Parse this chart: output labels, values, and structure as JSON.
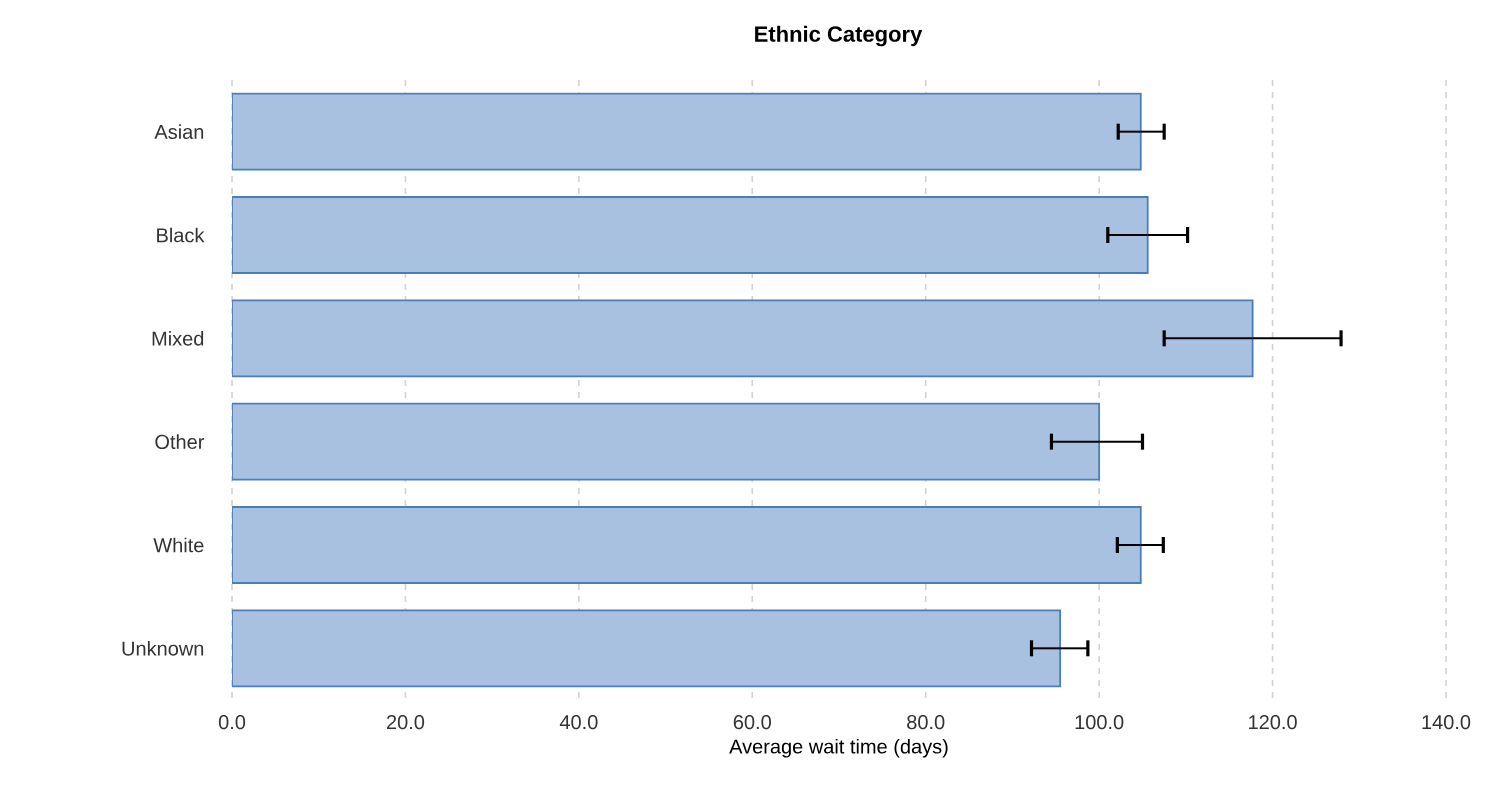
{
  "chart_data": {
    "type": "bar",
    "orientation": "horizontal",
    "title": "Ethnic Category",
    "xlabel": "Average wait time (days)",
    "categories": [
      "Asian",
      "Black",
      "Mixed",
      "Other",
      "White",
      "Unknown"
    ],
    "values": [
      104.8,
      105.6,
      117.7,
      100.0,
      104.8,
      95.5
    ],
    "errors": [
      [
        102.2,
        107.5
      ],
      [
        101.0,
        110.2
      ],
      [
        107.5,
        127.9
      ],
      [
        94.5,
        105.0
      ],
      [
        102.1,
        107.4
      ],
      [
        92.2,
        98.7
      ]
    ],
    "color": "#a9c1e0",
    "xlim": [
      0,
      140
    ],
    "xticks": [
      {
        "value": 0,
        "label": "0.0"
      },
      {
        "value": 20,
        "label": "20.0"
      },
      {
        "value": 40,
        "label": "40.0"
      },
      {
        "value": 60,
        "label": "60.0"
      },
      {
        "value": 80,
        "label": "80.0"
      },
      {
        "value": 100,
        "label": "100.0"
      },
      {
        "value": 120,
        "label": "120.0"
      },
      {
        "value": 140,
        "label": "140.0"
      }
    ],
    "grid": "x"
  }
}
